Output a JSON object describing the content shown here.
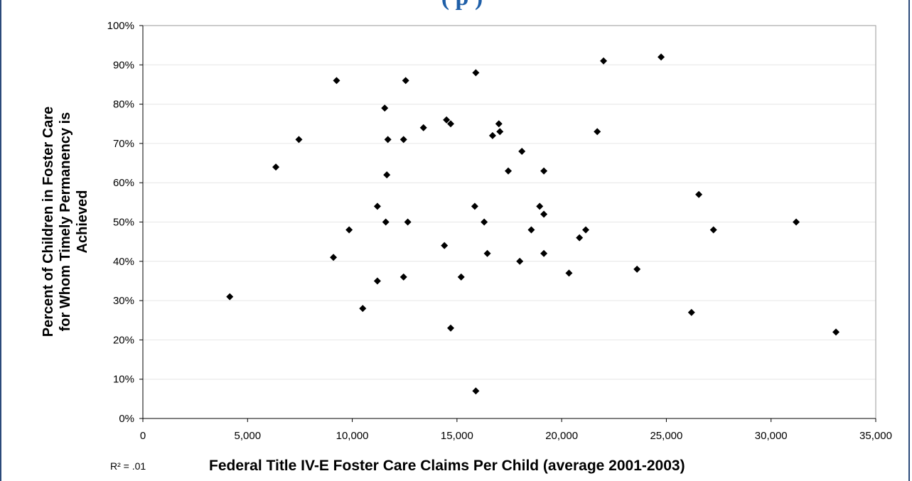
{
  "page": {
    "title_fragment": "(                                                  p           )"
  },
  "chart_data": {
    "type": "scatter",
    "title": "",
    "xlabel": "Federal Title IV-E Foster Care Claims Per Child (average 2001-2003)",
    "ylabel_lines": [
      "Percent of Children in Foster Care",
      "for Whom Timely Permanency is",
      "Achieved"
    ],
    "annotation": "R² = .01",
    "xlim": [
      0,
      35000
    ],
    "ylim": [
      0,
      100
    ],
    "x_ticks": [
      "0",
      "5,000",
      "10,000",
      "15,000",
      "20,000",
      "25,000",
      "30,000",
      "35,000"
    ],
    "y_ticks": [
      "0%",
      "10%",
      "20%",
      "30%",
      "40%",
      "50%",
      "60%",
      "70%",
      "80%",
      "90%",
      "100%"
    ],
    "grid": true,
    "marker": "diamond",
    "color": "#000000",
    "points": [
      [
        4150,
        31
      ],
      [
        6350,
        64
      ],
      [
        7450,
        71
      ],
      [
        9100,
        41
      ],
      [
        9250,
        86
      ],
      [
        9850,
        48
      ],
      [
        10500,
        28
      ],
      [
        11200,
        54
      ],
      [
        11200,
        35
      ],
      [
        11550,
        79
      ],
      [
        11600,
        50
      ],
      [
        11650,
        62
      ],
      [
        11700,
        71
      ],
      [
        12450,
        71
      ],
      [
        12450,
        36
      ],
      [
        12550,
        86
      ],
      [
        12650,
        50
      ],
      [
        13400,
        74
      ],
      [
        14400,
        44
      ],
      [
        14500,
        76
      ],
      [
        14700,
        75
      ],
      [
        14700,
        23
      ],
      [
        15200,
        36
      ],
      [
        15850,
        54
      ],
      [
        15900,
        88
      ],
      [
        15900,
        7
      ],
      [
        16300,
        50
      ],
      [
        16450,
        42
      ],
      [
        16700,
        72
      ],
      [
        17000,
        75
      ],
      [
        17050,
        73
      ],
      [
        17450,
        63
      ],
      [
        18000,
        40
      ],
      [
        18100,
        68
      ],
      [
        18550,
        48
      ],
      [
        18950,
        54
      ],
      [
        19150,
        52
      ],
      [
        19150,
        42
      ],
      [
        19150,
        63
      ],
      [
        20350,
        37
      ],
      [
        20850,
        46
      ],
      [
        21150,
        48
      ],
      [
        21700,
        73
      ],
      [
        22000,
        91
      ],
      [
        23600,
        38
      ],
      [
        24750,
        92
      ],
      [
        26200,
        27
      ],
      [
        26550,
        57
      ],
      [
        27250,
        48
      ],
      [
        31200,
        50
      ],
      [
        33100,
        22
      ]
    ]
  }
}
